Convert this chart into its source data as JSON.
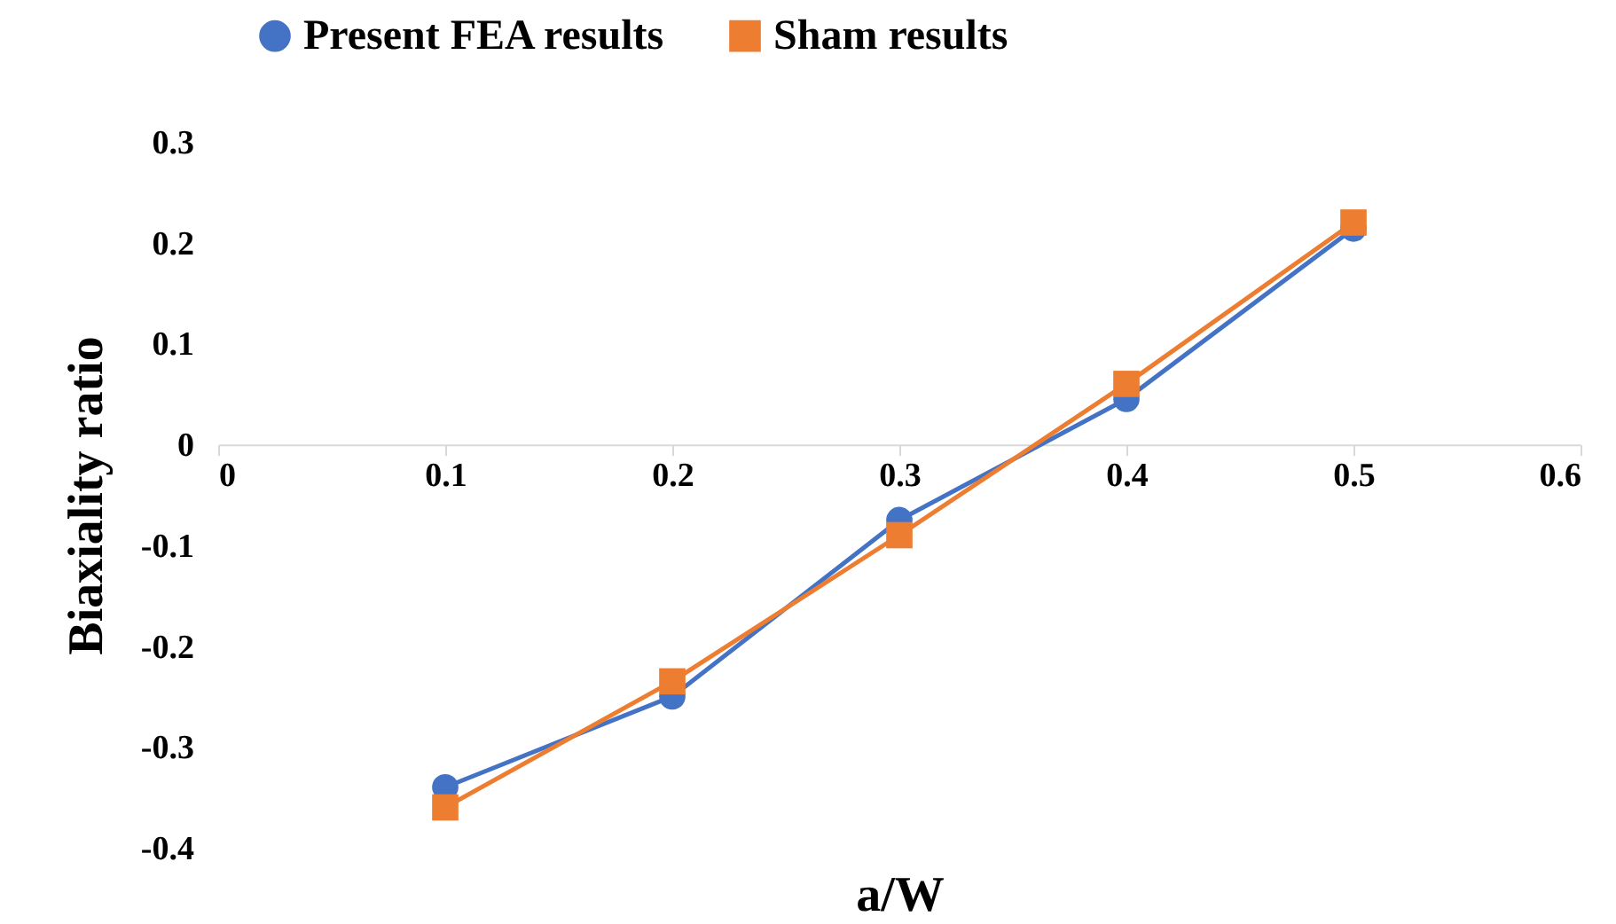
{
  "chart_data": {
    "type": "line",
    "xlabel": "a/W",
    "ylabel": "Biaxiality ratio",
    "x": [
      0.1,
      0.2,
      0.3,
      0.4,
      0.5
    ],
    "series": [
      {
        "name": "Present FEA results",
        "color": "#4472c4",
        "marker": "circle",
        "values": [
          -0.34,
          -0.25,
          -0.075,
          0.045,
          0.214
        ]
      },
      {
        "name": "Sham results",
        "color": "#ed7d31",
        "marker": "square",
        "values": [
          -0.36,
          -0.235,
          -0.09,
          0.06,
          0.22
        ]
      }
    ],
    "xlim": [
      0,
      0.6
    ],
    "xticks": [
      0,
      0.1,
      0.2,
      0.3,
      0.4,
      0.5,
      0.6
    ],
    "ylim": [
      -0.4,
      0.3
    ],
    "yticks": [
      -0.4,
      -0.3,
      -0.2,
      -0.1,
      0,
      0.1,
      0.2,
      0.3
    ],
    "grid": false,
    "legend": "top"
  }
}
